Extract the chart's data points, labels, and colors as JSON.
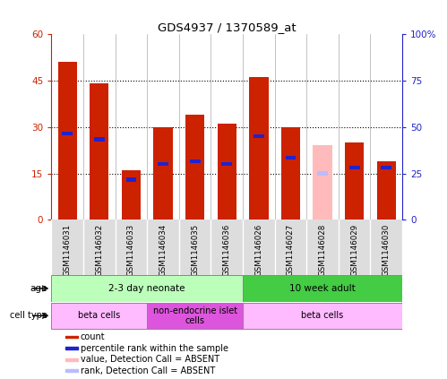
{
  "title": "GDS4937 / 1370589_at",
  "samples": [
    "GSM1146031",
    "GSM1146032",
    "GSM1146033",
    "GSM1146034",
    "GSM1146035",
    "GSM1146036",
    "GSM1146026",
    "GSM1146027",
    "GSM1146028",
    "GSM1146029",
    "GSM1146030"
  ],
  "count_values": [
    51,
    44,
    16,
    30,
    34,
    31,
    46,
    30,
    0,
    25,
    19
  ],
  "rank_values": [
    28,
    26,
    13,
    18,
    19,
    18,
    27,
    20,
    14,
    17,
    17
  ],
  "absent_count": [
    0,
    0,
    0,
    0,
    0,
    0,
    0,
    0,
    24,
    0,
    0
  ],
  "absent_rank": [
    0,
    0,
    0,
    0,
    0,
    0,
    0,
    0,
    15,
    0,
    0
  ],
  "left_ylim": [
    0,
    60
  ],
  "right_ylim": [
    0,
    100
  ],
  "left_yticks": [
    0,
    15,
    30,
    45,
    60
  ],
  "right_yticks": [
    0,
    25,
    50,
    75,
    100
  ],
  "left_yticklabels": [
    "0",
    "15",
    "30",
    "45",
    "60"
  ],
  "right_yticklabels": [
    "0",
    "25",
    "50",
    "75",
    "100%"
  ],
  "bar_color": "#cc2200",
  "rank_color": "#2222cc",
  "absent_bar_color": "#ffbbbb",
  "absent_rank_color": "#bbbbff",
  "plot_bg": "#ffffff",
  "age_groups": [
    {
      "label": "2-3 day neonate",
      "start": 0,
      "end": 6,
      "color": "#bbffbb"
    },
    {
      "label": "10 week adult",
      "start": 6,
      "end": 11,
      "color": "#44cc44"
    }
  ],
  "cell_groups": [
    {
      "label": "beta cells",
      "start": 0,
      "end": 3,
      "color": "#ffbbff"
    },
    {
      "label": "non-endocrine islet\ncells",
      "start": 3,
      "end": 6,
      "color": "#dd55dd"
    },
    {
      "label": "beta cells",
      "start": 6,
      "end": 11,
      "color": "#ffbbff"
    }
  ],
  "legend_items": [
    {
      "label": "count",
      "color": "#cc2200"
    },
    {
      "label": "percentile rank within the sample",
      "color": "#2222cc"
    },
    {
      "label": "value, Detection Call = ABSENT",
      "color": "#ffbbbb"
    },
    {
      "label": "rank, Detection Call = ABSENT",
      "color": "#bbbbff"
    }
  ],
  "left_axis_color": "#cc2200",
  "right_axis_color": "#2222cc",
  "gridline_yticks": [
    15,
    30,
    45
  ]
}
